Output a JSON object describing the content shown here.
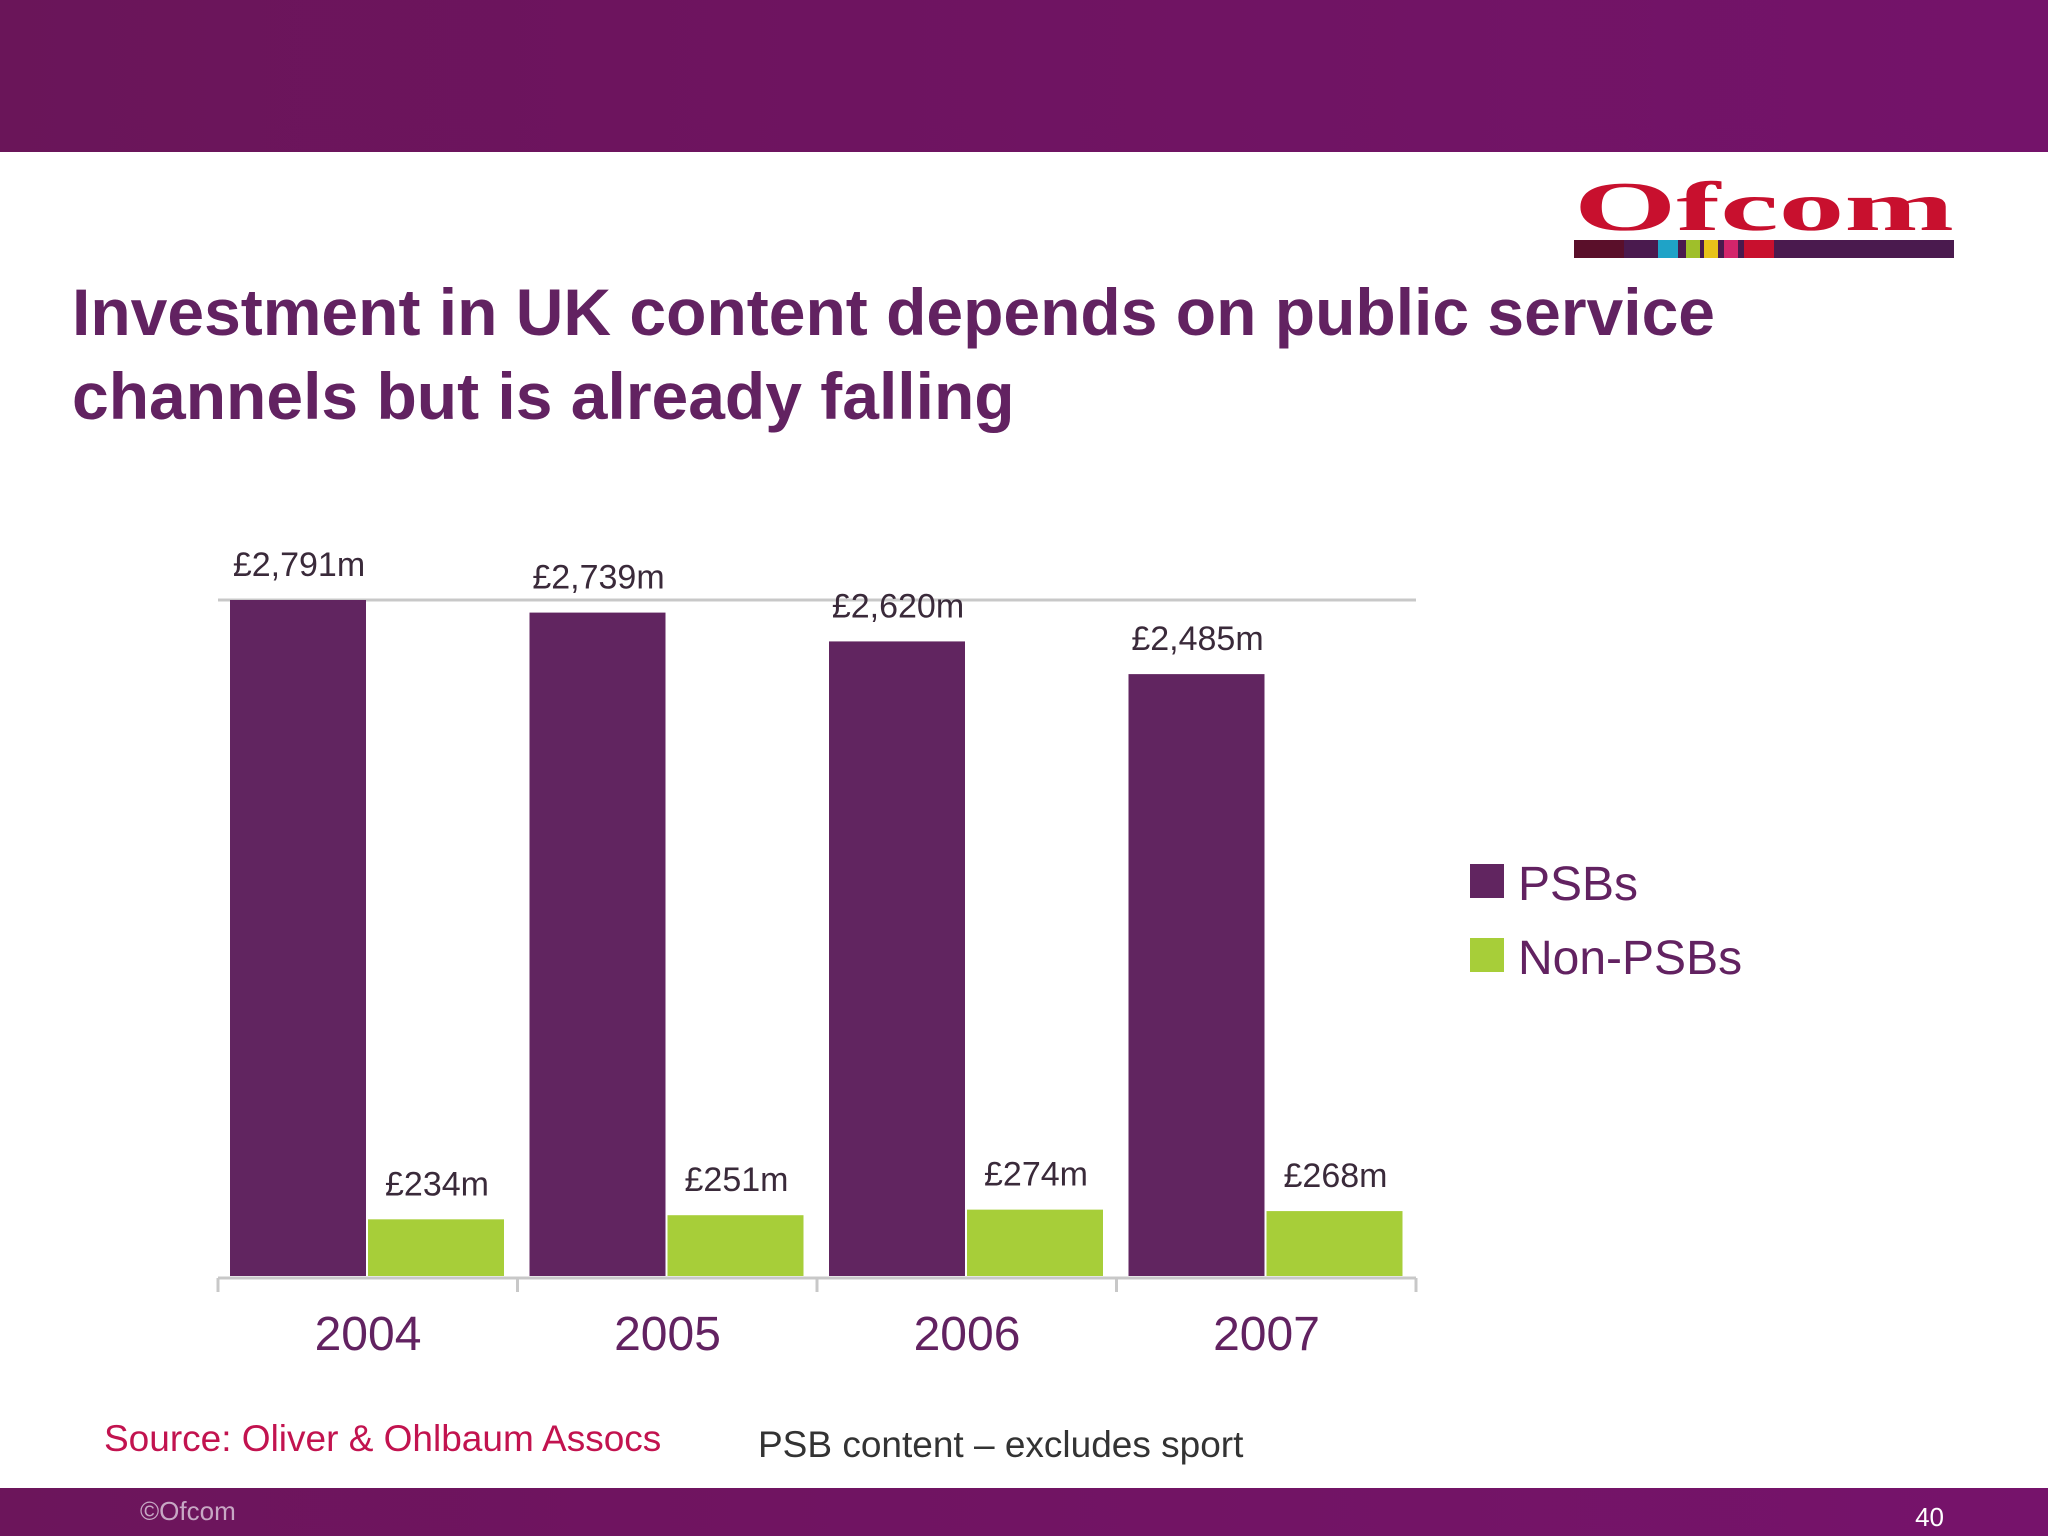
{
  "slide": {
    "title": "Investment in UK content depends on public service channels but is already falling",
    "logo_text": "Ofcom",
    "source": "Source: Oliver & Ohlbaum Assocs",
    "note": "PSB content – excludes sport",
    "copyright": "©Ofcom",
    "page_number": "40"
  },
  "colors": {
    "band": "#6e1460",
    "title": "#622261",
    "psb": "#612560",
    "non_psb": "#a7ce39",
    "source": "#c2134f",
    "logo_red": "#c8102e"
  },
  "chart_data": {
    "type": "bar",
    "categories": [
      "2004",
      "2005",
      "2006",
      "2007"
    ],
    "series": [
      {
        "name": "PSBs",
        "values": [
          2791,
          2739,
          2620,
          2485
        ],
        "labels": [
          "£2,791m",
          "£2,739m",
          "£2,620m",
          "£2,485m"
        ]
      },
      {
        "name": "Non-PSBs",
        "values": [
          234,
          251,
          274,
          268
        ],
        "labels": [
          "£234m",
          "£251m",
          "£274m",
          "£268m"
        ]
      }
    ],
    "ylim": [
      0,
      2791
    ],
    "legend": "right",
    "grid": false
  }
}
